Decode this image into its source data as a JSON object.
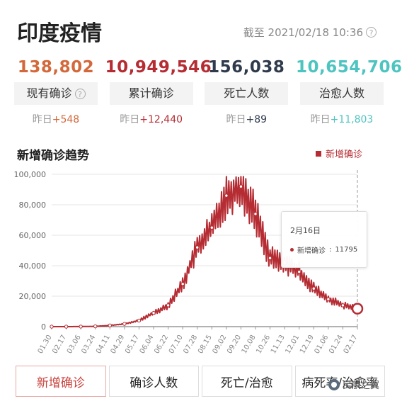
{
  "header": {
    "title": "印度疫情",
    "deadline": "截至 2021/02/18 10:36"
  },
  "stats": [
    {
      "key": "active",
      "value": "138,802",
      "label": "现有确诊",
      "yesterday_prefix": "昨日",
      "yesterday_change": "+548",
      "color": "#d3683b",
      "has_help": true
    },
    {
      "key": "total",
      "value": "10,949,546",
      "label": "累计确诊",
      "yesterday_prefix": "昨日",
      "yesterday_change": "+12,440",
      "color": "#b52c33",
      "has_help": false
    },
    {
      "key": "deaths",
      "value": "156,038",
      "label": "死亡人数",
      "yesterday_prefix": "昨日",
      "yesterday_change": "+89",
      "color": "#2f3b4d",
      "has_help": false
    },
    {
      "key": "recovered",
      "value": "10,654,706",
      "label": "治愈人数",
      "yesterday_prefix": "昨日",
      "yesterday_change": "+11,803",
      "color": "#4ec4c0",
      "has_help": false
    }
  ],
  "chart_section": {
    "title": "新增确诊趋势",
    "legend": "新增确诊"
  },
  "chart_data": {
    "type": "line",
    "title": "新增确诊趋势",
    "x_tick_labels": [
      "01.30",
      "02.17",
      "03.06",
      "03.24",
      "04.11",
      "04.29",
      "05.17",
      "06.04",
      "06.22",
      "07.10",
      "07.28",
      "08.15",
      "09.02",
      "09.20",
      "10.08",
      "10.26",
      "11.13",
      "12.01",
      "12.19",
      "01.06",
      "01.24",
      "02.17"
    ],
    "y_tick_labels": [
      "0",
      "20,000",
      "40,000",
      "60,000",
      "80,000",
      "100,000"
    ],
    "ylim": [
      0,
      100000
    ],
    "series": [
      {
        "name": "新增确诊",
        "color": "#b52c33",
        "x": [
          "01.30",
          "02.17",
          "03.06",
          "03.24",
          "04.11",
          "04.29",
          "05.17",
          "06.04",
          "06.22",
          "07.10",
          "07.28",
          "08.15",
          "09.02",
          "09.20",
          "10.08",
          "10.26",
          "11.13",
          "12.01",
          "12.19",
          "01.06",
          "01.24",
          "02.17"
        ],
        "values": [
          0,
          0,
          50,
          200,
          800,
          1800,
          4000,
          9000,
          14000,
          28000,
          52000,
          65000,
          86000,
          92000,
          74000,
          45000,
          42000,
          36000,
          25000,
          18000,
          14000,
          11795
        ]
      }
    ],
    "grid": true,
    "legend_position": "top-right",
    "tooltip": {
      "date": "2月16日",
      "label": "新增确诊",
      "value": "11795"
    }
  },
  "tabs": [
    "新增确诊",
    "确诊人数",
    "死亡/治愈",
    "病死率/治愈率"
  ],
  "active_tab": 0,
  "watermark": "民航之翼"
}
